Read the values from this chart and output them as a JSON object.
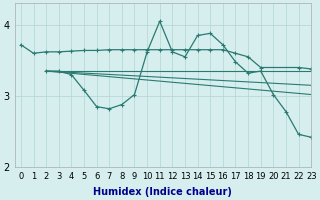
{
  "xlabel": "Humidex (Indice chaleur)",
  "xlim": [
    -0.5,
    23
  ],
  "ylim": [
    2.0,
    4.3
  ],
  "yticks": [
    2,
    3,
    4
  ],
  "xticks": [
    0,
    1,
    2,
    3,
    4,
    5,
    6,
    7,
    8,
    9,
    10,
    11,
    12,
    13,
    14,
    15,
    16,
    17,
    18,
    19,
    20,
    21,
    22,
    23
  ],
  "bg_color": "#d6eeee",
  "grid_color": "#b8d8d8",
  "line_color": "#2a7a72",
  "line1_x": [
    0,
    1,
    2,
    3,
    4,
    5,
    6,
    7,
    8,
    9,
    10,
    11,
    12,
    13,
    14,
    15,
    16,
    17,
    18,
    19,
    22,
    23
  ],
  "line1_y": [
    3.72,
    3.6,
    3.62,
    3.62,
    3.63,
    3.64,
    3.64,
    3.65,
    3.65,
    3.65,
    3.65,
    3.65,
    3.65,
    3.65,
    3.65,
    3.65,
    3.65,
    3.6,
    3.55,
    3.4,
    3.4,
    3.38
  ],
  "line2_x": [
    2,
    3,
    4,
    5,
    6,
    7,
    8,
    9,
    10,
    11,
    12,
    13,
    14,
    15,
    16,
    17,
    18,
    19,
    20,
    21,
    22,
    23
  ],
  "line2_y": [
    3.35,
    3.35,
    3.3,
    3.08,
    2.85,
    2.82,
    2.88,
    3.02,
    3.62,
    4.05,
    3.62,
    3.55,
    3.85,
    3.88,
    3.72,
    3.48,
    3.32,
    3.35,
    3.02,
    2.78,
    2.46,
    2.42
  ],
  "line3_x": [
    2,
    23
  ],
  "line3_y": [
    3.35,
    3.35
  ],
  "line4_x": [
    2,
    23
  ],
  "line4_y": [
    3.35,
    3.15
  ],
  "line5_x": [
    2,
    23
  ],
  "line5_y": [
    3.35,
    3.02
  ],
  "xlabel_color": "#00008b",
  "xlabel_fontsize": 7,
  "tick_fontsize": 6
}
